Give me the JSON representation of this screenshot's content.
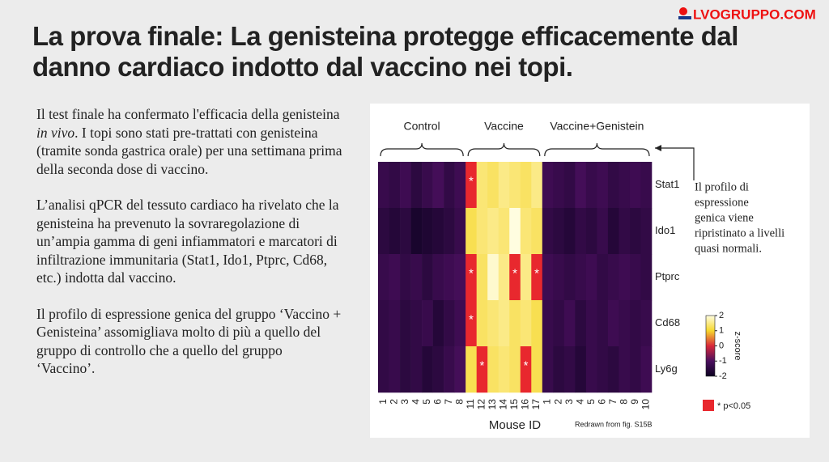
{
  "logo": "LVOGRUPPO.COM",
  "title": "La prova finale: La genisteina protegge efficacemente dal danno cardiaco indotto dal vaccino nei topi.",
  "paragraphs": [
    [
      "Il test finale ha confermato l'efficacia della genisteina ",
      "in vivo",
      ". I topi sono stati pre-trattati con genisteina (tramite sonda gastrica orale) per una settimana prima della seconda dose di vaccino."
    ],
    [
      "L’analisi qPCR del tessuto cardiaco ha rivelato che la genisteina ha prevenuto la sovraregolazione di un’ampia gamma di geni infiammatori e marcatori di infiltrazione immunitaria (Stat1, Ido1, Ptprc, Cd68, etc.) indotta dal vaccino."
    ],
    [
      "Il profilo di espressione genica del gruppo ‘Vaccino + Genisteina’ assomigliava molto di più a quello del gruppo di controllo che a quello del gruppo ‘Vaccino’."
    ]
  ],
  "chart_data": {
    "type": "heatmap",
    "groups": [
      {
        "label": "Control",
        "size": 8
      },
      {
        "label": "Vaccine",
        "size": 7
      },
      {
        "label": "Vaccine+Genistein",
        "size": 10
      }
    ],
    "rows": [
      "Stat1",
      "Ido1",
      "Ptprc",
      "Cd68",
      "Ly6g"
    ],
    "columns": [
      "1",
      "2",
      "3",
      "4",
      "5",
      "6",
      "7",
      "8",
      "11",
      "12",
      "13",
      "14",
      "15",
      "16",
      "17",
      "1",
      "2",
      "3",
      "4",
      "5",
      "6",
      "7",
      "8",
      "9",
      "10"
    ],
    "x_label": "Mouse ID",
    "values": [
      [
        -1.3,
        -1.4,
        -1.2,
        -1.5,
        -1.3,
        -1.1,
        -1.4,
        -1.2,
        0.1,
        1.4,
        1.3,
        1.5,
        1.4,
        1.3,
        1.5,
        -1.2,
        -1.3,
        -1.4,
        -1.1,
        -1.3,
        -1.2,
        -1.4,
        -1.3,
        -1.2,
        -1.3
      ],
      [
        -1.5,
        -1.6,
        -1.5,
        -1.8,
        -1.7,
        -1.6,
        -1.5,
        -1.3,
        1.2,
        1.4,
        1.5,
        1.4,
        2.0,
        1.4,
        1.3,
        -1.4,
        -1.5,
        -1.6,
        -1.4,
        -1.5,
        -1.3,
        -1.6,
        -1.4,
        -1.5,
        -1.4
      ],
      [
        -1.3,
        -1.2,
        -1.4,
        -1.3,
        -1.5,
        -1.3,
        -1.2,
        -1.1,
        0.1,
        1.3,
        1.9,
        1.5,
        0.1,
        1.5,
        0.1,
        -1.2,
        -1.3,
        -1.4,
        -1.3,
        -1.2,
        -1.4,
        -1.3,
        -1.2,
        -1.3,
        -1.4
      ],
      [
        -1.4,
        -1.3,
        -1.5,
        -1.4,
        -1.3,
        -1.6,
        -1.4,
        -1.2,
        0.1,
        1.3,
        1.4,
        1.5,
        1.3,
        1.4,
        1.2,
        -1.3,
        -1.4,
        -1.2,
        -1.5,
        -1.3,
        -1.4,
        -1.2,
        -1.3,
        -1.4,
        -1.3
      ],
      [
        -1.4,
        -1.3,
        -1.5,
        -1.4,
        -1.6,
        -1.5,
        -1.3,
        -1.1,
        1.2,
        0.1,
        1.3,
        1.4,
        1.3,
        0.1,
        1.2,
        -1.3,
        -1.5,
        -1.4,
        -1.6,
        -1.3,
        -1.4,
        -1.5,
        -1.3,
        -1.4,
        -1.2
      ]
    ],
    "significant": [
      [
        0,
        8
      ],
      [
        2,
        8
      ],
      [
        2,
        12
      ],
      [
        2,
        14
      ],
      [
        3,
        8
      ],
      [
        4,
        9
      ],
      [
        4,
        13
      ]
    ],
    "significance_symbol": "*",
    "significance_color": "#e8282e",
    "significance_label": "* p<0.05",
    "colorscale": [
      "#0d0221",
      "#4a0f5e",
      "#d8283a",
      "#f6d72d",
      "#fffde0"
    ],
    "colorbar": {
      "label": "z-score",
      "lim": [
        -2,
        2
      ],
      "ticks": [
        2,
        1,
        0,
        -1,
        -2
      ]
    },
    "annotation": [
      "Il profilo di",
      "espressione",
      "genica viene",
      "ripristinato a livelli",
      "quasi normali."
    ],
    "source": "Redrawn from fig. S15B"
  }
}
